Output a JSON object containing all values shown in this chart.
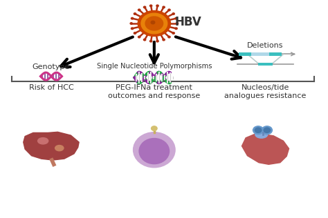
{
  "title": "HBV",
  "background_color": "#ffffff",
  "labels": {
    "genotype": "Genotype",
    "snp": "Single Nucleotide Polymorphisms",
    "deletions": "Deletions",
    "risk_hcc": "Risk of HCC",
    "peg_ifna": "PEG-IFNa treatment\noutcomes and response",
    "nucleos": "Nucleos/tide\nanalogues resistance"
  },
  "colors": {
    "virus_spike": "#b03010",
    "virus_outer": "#cc4400",
    "virus_mid": "#e8810a",
    "virus_inner": "#d05800",
    "virus_core": "#b04400",
    "arrow": "#111111",
    "dna_green": "#22aa44",
    "dna_purple": "#882299",
    "dna_pink": "#cc3388",
    "teal": "#3bbfbf",
    "teal_light": "#b0e0e0",
    "liver_main": "#a04040",
    "liver_spot1": "#c87070",
    "liver_spot2": "#c88060",
    "liver_duct": "#c07860",
    "cell_outer": "#cca8d4",
    "cell_inner": "#bb88cc",
    "cell_nucleus": "#aa70bb",
    "cell_knob": "#d4c090",
    "pill_blue1": "#6699cc",
    "pill_blue2": "#4477aa",
    "kidney_main": "#bb5555",
    "line_color": "#555555",
    "text_color": "#333333"
  },
  "figsize": [
    4.74,
    3.16
  ],
  "dpi": 100
}
